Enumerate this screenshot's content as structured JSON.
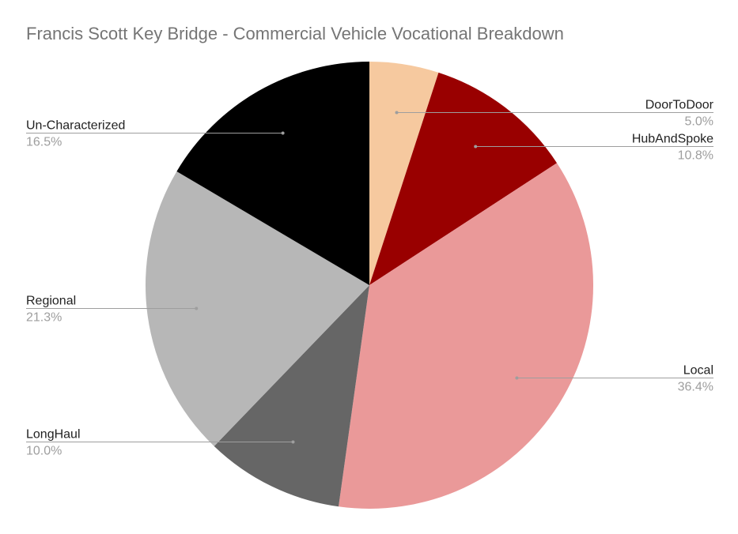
{
  "chart_data": {
    "type": "pie",
    "title": "Francis Scott Key Bridge - Commercial Vehicle Vocational Breakdown",
    "legend": "callout labels",
    "slices": [
      {
        "label": "DoorToDoor",
        "value": 5.0,
        "display": "5.0%",
        "color": "#f6c99f",
        "side": "right"
      },
      {
        "label": "HubAndSpoke",
        "value": 10.8,
        "display": "10.8%",
        "color": "#990000",
        "side": "right"
      },
      {
        "label": "Local",
        "value": 36.4,
        "display": "36.4%",
        "color": "#ea9999",
        "side": "right"
      },
      {
        "label": "LongHaul",
        "value": 10.0,
        "display": "10.0%",
        "color": "#666666",
        "side": "left"
      },
      {
        "label": "Regional",
        "value": 21.3,
        "display": "21.3%",
        "color": "#b7b7b7",
        "side": "left"
      },
      {
        "label": "Un-Characterized",
        "value": 16.5,
        "display": "16.5%",
        "color": "#000000",
        "side": "left"
      }
    ]
  }
}
